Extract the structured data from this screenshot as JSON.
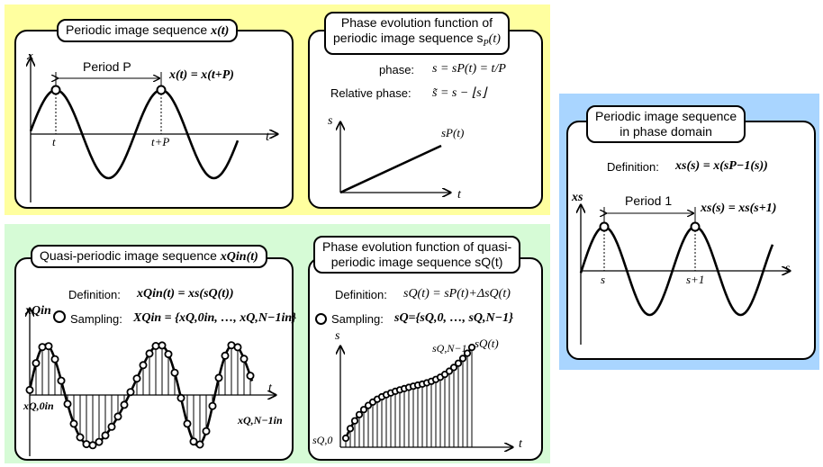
{
  "colors": {
    "panel_yellow": "#ffff9f",
    "panel_green": "#d6fbd6",
    "panel_blue": "#a9d5ff"
  },
  "top_left": {
    "title_pre": "Periodic image sequence ",
    "title_sym": "x(t)",
    "y_axis": "x",
    "x_axis": "t",
    "period_label": "Period P",
    "equation": "x(t) = x(t+P)",
    "tick_t": "t",
    "tick_tp": "t+P"
  },
  "top_mid": {
    "title_line1": "Phase evolution function of",
    "title_line2": "periodic image sequence s",
    "title_sub": "P",
    "title_arg": "(t)",
    "phase_label": "phase:",
    "phase_eq": "s = sP(t) = t/P",
    "rel_label": "Relative phase:",
    "rel_eq": "s̃ = s − ⌊s⌋",
    "y_axis": "s",
    "x_axis": "t",
    "curve_label": "sP(t)"
  },
  "right": {
    "title_line1": "Periodic image sequence",
    "title_line2": "in phase domain",
    "def_label": "Definition:",
    "def_eq": "xs(s) = x(sP−1(s))",
    "y_axis": "xs",
    "x_axis": "s",
    "period_label": "Period 1",
    "equation": "xs(s) = xs(s+1)",
    "tick_s": "s",
    "tick_s1": "s+1"
  },
  "bottom_left": {
    "title_pre": "Quasi-periodic image sequence ",
    "title_sym": "xQin(t)",
    "def_label": "Definition:",
    "def_eq": "xQin(t) = xs(sQ(t))",
    "sampling_label": "Sampling:",
    "sampling_eq": "XQin = {xQ,0in, …, xQ,N−1in}",
    "y_axis": "xQin",
    "x_axis": "t",
    "start_label": "xQ,0in",
    "end_label": "xQ,N−1in"
  },
  "bottom_mid": {
    "title_line1": "Phase evolution function of quasi-",
    "title_line2": "periodic image sequence sQ(t)",
    "def_label": "Definition:",
    "def_eq": "sQ(t) = sP(t)+ΔsQ(t)",
    "sampling_label": "Sampling:",
    "sampling_eq": "sQ={sQ,0, …, sQ,N−1}",
    "y_axis": "s",
    "x_axis": "t",
    "start_label": "sQ,0",
    "end_label": "sQ,N−1",
    "curve_label": "sQ(t)"
  }
}
